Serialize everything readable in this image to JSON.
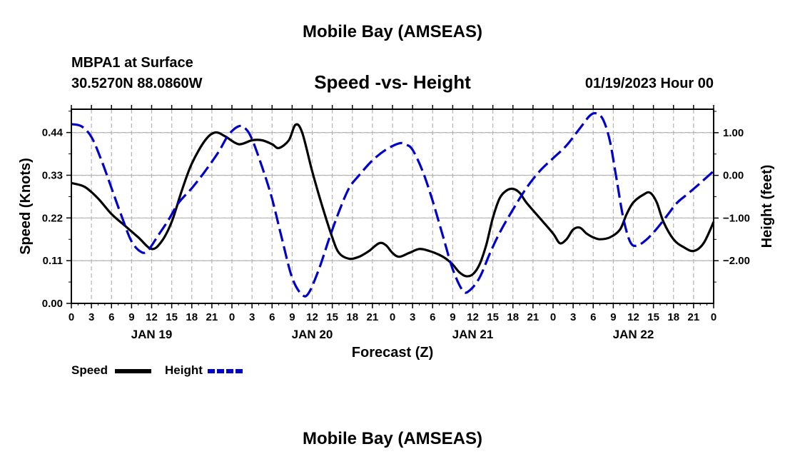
{
  "header": {
    "title": "Mobile Bay (AMSEAS)",
    "station": "MBPA1 at Surface",
    "coords": "30.5270N  88.0860W",
    "subtitle": "Speed -vs- Height",
    "datetime": "01/19/2023 Hour 00"
  },
  "footer": {
    "title": "Mobile Bay (AMSEAS)"
  },
  "chart_data": {
    "type": "line",
    "title": "Speed -vs- Height",
    "xlabel": "Forecast (Z)",
    "ylabel": "Speed (Knots)",
    "ylabel_right": "Height (feet)",
    "xlim": [
      0,
      96
    ],
    "ylim": [
      0,
      0.5
    ],
    "ylim_right": [
      -3.0,
      1.55
    ],
    "grid": true,
    "legend_position": "bottom-left",
    "x_ticks": [
      0,
      3,
      6,
      9,
      12,
      15,
      18,
      21,
      24,
      27,
      30,
      33,
      36,
      39,
      42,
      45,
      48,
      51,
      54,
      57,
      60,
      63,
      66,
      69,
      72,
      75,
      78,
      81,
      84,
      87,
      90,
      93,
      96
    ],
    "x_tick_labels": [
      "0",
      "3",
      "6",
      "9",
      "12",
      "15",
      "18",
      "21",
      "0",
      "3",
      "6",
      "9",
      "12",
      "15",
      "18",
      "21",
      "0",
      "3",
      "6",
      "9",
      "12",
      "15",
      "18",
      "21",
      "0",
      "3",
      "6",
      "9",
      "12",
      "15",
      "18",
      "21",
      "0"
    ],
    "day_labels": [
      {
        "x": 12,
        "label": "JAN 19"
      },
      {
        "x": 36,
        "label": "JAN 20"
      },
      {
        "x": 60,
        "label": "JAN 21"
      },
      {
        "x": 84,
        "label": "JAN 22"
      }
    ],
    "y_ticks_left": [
      {
        "value": 0.0,
        "label": "0.00"
      },
      {
        "value": 0.11,
        "label": "0.11"
      },
      {
        "value": 0.22,
        "label": "0.22"
      },
      {
        "value": 0.33,
        "label": "0.33"
      },
      {
        "value": 0.44,
        "label": "0.44"
      }
    ],
    "y_ticks_right": [
      {
        "value": 1.0,
        "label": "1.00"
      },
      {
        "value": 0.0,
        "label": "0.00"
      },
      {
        "value": -1.0,
        "label": "−1.00"
      },
      {
        "value": -2.0,
        "label": "−2.00"
      }
    ],
    "series": [
      {
        "name": "Speed",
        "axis": "left",
        "color": "#000000",
        "style": "solid",
        "points": [
          [
            0,
            0.31
          ],
          [
            2,
            0.3
          ],
          [
            4,
            0.27
          ],
          [
            6,
            0.23
          ],
          [
            8,
            0.2
          ],
          [
            10,
            0.17
          ],
          [
            12,
            0.14
          ],
          [
            13.5,
            0.16
          ],
          [
            15,
            0.21
          ],
          [
            16.5,
            0.29
          ],
          [
            18,
            0.36
          ],
          [
            20,
            0.42
          ],
          [
            21.5,
            0.44
          ],
          [
            23,
            0.43
          ],
          [
            25,
            0.41
          ],
          [
            27,
            0.42
          ],
          [
            28.5,
            0.42
          ],
          [
            30,
            0.41
          ],
          [
            31,
            0.4
          ],
          [
            32.5,
            0.42
          ],
          [
            33.5,
            0.46
          ],
          [
            34.5,
            0.44
          ],
          [
            36,
            0.34
          ],
          [
            37.5,
            0.25
          ],
          [
            39,
            0.17
          ],
          [
            40,
            0.13
          ],
          [
            41.5,
            0.115
          ],
          [
            43,
            0.12
          ],
          [
            44.5,
            0.135
          ],
          [
            46,
            0.155
          ],
          [
            47,
            0.15
          ],
          [
            48,
            0.13
          ],
          [
            49,
            0.12
          ],
          [
            50.5,
            0.13
          ],
          [
            52,
            0.14
          ],
          [
            53.5,
            0.135
          ],
          [
            55,
            0.125
          ],
          [
            56,
            0.115
          ],
          [
            57,
            0.1
          ],
          [
            58,
            0.08
          ],
          [
            59,
            0.07
          ],
          [
            60,
            0.075
          ],
          [
            61,
            0.1
          ],
          [
            62,
            0.15
          ],
          [
            63,
            0.22
          ],
          [
            64,
            0.27
          ],
          [
            65,
            0.29
          ],
          [
            66,
            0.295
          ],
          [
            67,
            0.285
          ],
          [
            68,
            0.26
          ],
          [
            70,
            0.22
          ],
          [
            72,
            0.18
          ],
          [
            73,
            0.155
          ],
          [
            74,
            0.165
          ],
          [
            75,
            0.19
          ],
          [
            76,
            0.195
          ],
          [
            77,
            0.18
          ],
          [
            78,
            0.17
          ],
          [
            79,
            0.165
          ],
          [
            80.5,
            0.17
          ],
          [
            82,
            0.19
          ],
          [
            83,
            0.23
          ],
          [
            84,
            0.26
          ],
          [
            85.5,
            0.28
          ],
          [
            86.5,
            0.285
          ],
          [
            87.5,
            0.26
          ],
          [
            88.5,
            0.21
          ],
          [
            90,
            0.165
          ],
          [
            91.5,
            0.145
          ],
          [
            93,
            0.135
          ],
          [
            94.5,
            0.155
          ],
          [
            96,
            0.21
          ]
        ]
      },
      {
        "name": "Height",
        "axis": "right",
        "color": "#0000cc",
        "style": "dashed",
        "points": [
          [
            0,
            1.2
          ],
          [
            1.5,
            1.15
          ],
          [
            3,
            0.9
          ],
          [
            4.5,
            0.35
          ],
          [
            6,
            -0.3
          ],
          [
            7.5,
            -0.95
          ],
          [
            9,
            -1.55
          ],
          [
            10.5,
            -1.8
          ],
          [
            11.5,
            -1.75
          ],
          [
            13,
            -1.4
          ],
          [
            14.5,
            -1.05
          ],
          [
            16,
            -0.65
          ],
          [
            18,
            -0.3
          ],
          [
            20,
            0.1
          ],
          [
            22,
            0.55
          ],
          [
            23.5,
            0.95
          ],
          [
            25,
            1.15
          ],
          [
            26,
            1.1
          ],
          [
            27,
            0.85
          ],
          [
            28.5,
            0.2
          ],
          [
            30,
            -0.55
          ],
          [
            31.5,
            -1.5
          ],
          [
            33,
            -2.4
          ],
          [
            34.5,
            -2.8
          ],
          [
            35.5,
            -2.75
          ],
          [
            37,
            -2.2
          ],
          [
            38.5,
            -1.5
          ],
          [
            40,
            -0.85
          ],
          [
            41.5,
            -0.3
          ],
          [
            43,
            0.0
          ],
          [
            45,
            0.35
          ],
          [
            47,
            0.6
          ],
          [
            49,
            0.75
          ],
          [
            50,
            0.72
          ],
          [
            51,
            0.6
          ],
          [
            52.5,
            0.1
          ],
          [
            54,
            -0.6
          ],
          [
            55.5,
            -1.4
          ],
          [
            57,
            -2.2
          ],
          [
            58.5,
            -2.7
          ],
          [
            59.5,
            -2.7
          ],
          [
            61,
            -2.4
          ],
          [
            62.5,
            -1.85
          ],
          [
            64,
            -1.35
          ],
          [
            66,
            -0.8
          ],
          [
            68,
            -0.3
          ],
          [
            70,
            0.1
          ],
          [
            72,
            0.4
          ],
          [
            74,
            0.7
          ],
          [
            76,
            1.1
          ],
          [
            77.5,
            1.4
          ],
          [
            78.5,
            1.45
          ],
          [
            79.5,
            1.3
          ],
          [
            80.5,
            0.8
          ],
          [
            81.5,
            -0.1
          ],
          [
            82.5,
            -1.0
          ],
          [
            83.5,
            -1.55
          ],
          [
            84.5,
            -1.65
          ],
          [
            86,
            -1.5
          ],
          [
            87.5,
            -1.25
          ],
          [
            89,
            -0.95
          ],
          [
            90.5,
            -0.65
          ],
          [
            92,
            -0.45
          ],
          [
            93.5,
            -0.25
          ],
          [
            96,
            0.1
          ]
        ]
      }
    ]
  }
}
